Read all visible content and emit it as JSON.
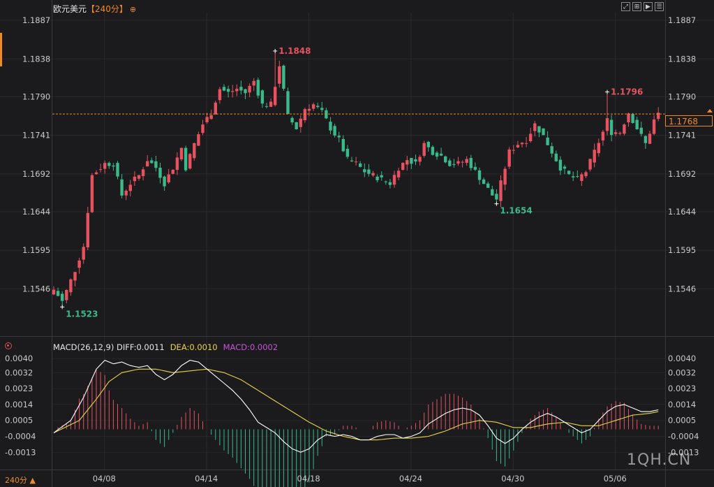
{
  "header": {
    "symbol": "欧元美元",
    "period": "【240分】",
    "plus_icon": "⊕",
    "toolbar_icons": [
      "fullscreen-icon",
      "crosshair-icon",
      "play-icon",
      "settings-icon"
    ]
  },
  "footer": {
    "period_label": "240分",
    "period_arrow": "▲"
  },
  "watermark": "1QH.CN",
  "macd": {
    "label": "MACD(26,12,9) DIFF:0.0011",
    "dea_label": "DEA:0.0010",
    "macd_label": "MACD:0.0002"
  },
  "colors": {
    "up": "#e8515f",
    "down": "#3ab98b",
    "diff": "#ffffff",
    "dea": "#e8d34a",
    "current_line": "#f08a24"
  },
  "chart_data": [
    {
      "type": "candlestick",
      "title": "欧元美元【240分】",
      "ylim": [
        1.151,
        1.1895
      ],
      "yticks": [
        "1.1887",
        "1.1838",
        "1.1790",
        "1.1741",
        "1.1692",
        "1.1644",
        "1.1595",
        "1.1546"
      ],
      "xticks": [
        {
          "label": "04/08",
          "index": 7
        },
        {
          "label": "04/14",
          "index": 31
        },
        {
          "label": "04/18",
          "index": 55
        },
        {
          "label": "04/24",
          "index": 79
        },
        {
          "label": "04/30",
          "index": 103
        },
        {
          "label": "05/06",
          "index": 127
        }
      ],
      "current_price": "1.1768",
      "annotations": [
        {
          "text": "1.1523",
          "index": 2,
          "value": 1.1523,
          "kind": "low"
        },
        {
          "text": "1.1848",
          "index": 52,
          "value": 1.1848,
          "kind": "high"
        },
        {
          "text": "1.1654",
          "index": 104,
          "value": 1.1654,
          "kind": "low"
        },
        {
          "text": "1.1796",
          "index": 130,
          "value": 1.1796,
          "kind": "high"
        }
      ],
      "anchors": [
        [
          0,
          1.1545
        ],
        [
          2,
          1.153
        ],
        [
          5,
          1.157
        ],
        [
          7,
          1.16
        ],
        [
          9,
          1.169
        ],
        [
          12,
          1.1705
        ],
        [
          14,
          1.1705
        ],
        [
          16,
          1.1665
        ],
        [
          18,
          1.168
        ],
        [
          20,
          1.169
        ],
        [
          22,
          1.171
        ],
        [
          24,
          1.17
        ],
        [
          26,
          1.168
        ],
        [
          28,
          1.17
        ],
        [
          30,
          1.1725
        ],
        [
          31,
          1.17
        ],
        [
          33,
          1.173
        ],
        [
          35,
          1.1755
        ],
        [
          37,
          1.177
        ],
        [
          39,
          1.18
        ],
        [
          41,
          1.1795
        ],
        [
          43,
          1.18
        ],
        [
          45,
          1.1795
        ],
        [
          47,
          1.181
        ],
        [
          49,
          1.178
        ],
        [
          51,
          1.178
        ],
        [
          53,
          1.183
        ],
        [
          55,
          1.1765
        ],
        [
          57,
          1.175
        ],
        [
          59,
          1.1775
        ],
        [
          61,
          1.178
        ],
        [
          63,
          1.177
        ],
        [
          65,
          1.175
        ],
        [
          67,
          1.1735
        ],
        [
          69,
          1.171
        ],
        [
          71,
          1.1705
        ],
        [
          73,
          1.1695
        ],
        [
          75,
          1.169
        ],
        [
          77,
          1.1685
        ],
        [
          79,
          1.168
        ],
        [
          81,
          1.17
        ],
        [
          83,
          1.171
        ],
        [
          85,
          1.1705
        ],
        [
          87,
          1.173
        ],
        [
          89,
          1.172
        ],
        [
          91,
          1.1715
        ],
        [
          93,
          1.1705
        ],
        [
          95,
          1.1705
        ],
        [
          97,
          1.171
        ],
        [
          99,
          1.1695
        ],
        [
          101,
          1.168
        ],
        [
          103,
          1.1665
        ],
        [
          104,
          1.166
        ],
        [
          105,
          1.168
        ],
        [
          107,
          1.172
        ],
        [
          109,
          1.173
        ],
        [
          111,
          1.1735
        ],
        [
          113,
          1.1755
        ],
        [
          115,
          1.174
        ],
        [
          117,
          1.172
        ],
        [
          119,
          1.17
        ],
        [
          121,
          1.169
        ],
        [
          123,
          1.1685
        ],
        [
          125,
          1.1695
        ],
        [
          127,
          1.172
        ],
        [
          129,
          1.1745
        ],
        [
          130,
          1.176
        ],
        [
          131,
          1.1745
        ],
        [
          133,
          1.1745
        ],
        [
          135,
          1.177
        ],
        [
          136,
          1.176
        ],
        [
          138,
          1.174
        ],
        [
          139,
          1.173
        ],
        [
          141,
          1.176
        ],
        [
          142,
          1.1768
        ]
      ]
    },
    {
      "type": "macd",
      "title": "MACD(26,12,9)",
      "ylim": [
        -0.0018,
        0.0042
      ],
      "yticks": [
        "0.0040",
        "0.0032",
        "0.0023",
        "0.0014",
        "0.0005",
        "-0.0004",
        "-0.0013"
      ],
      "diff_anchors": [
        [
          0,
          -0.0002
        ],
        [
          4,
          0.0005
        ],
        [
          7,
          0.0018
        ],
        [
          10,
          0.0034
        ],
        [
          12,
          0.0039
        ],
        [
          14,
          0.0037
        ],
        [
          16,
          0.0038
        ],
        [
          18,
          0.0036
        ],
        [
          20,
          0.0035
        ],
        [
          22,
          0.0036
        ],
        [
          24,
          0.0031
        ],
        [
          26,
          0.0028
        ],
        [
          28,
          0.0031
        ],
        [
          30,
          0.0036
        ],
        [
          32,
          0.0039
        ],
        [
          34,
          0.0038
        ],
        [
          36,
          0.0034
        ],
        [
          38,
          0.003
        ],
        [
          40,
          0.0026
        ],
        [
          42,
          0.0022
        ],
        [
          44,
          0.0017
        ],
        [
          46,
          0.0011
        ],
        [
          48,
          0.0004
        ],
        [
          50,
          0.0001
        ],
        [
          52,
          -0.0002
        ],
        [
          54,
          -0.0007
        ],
        [
          56,
          -0.0011
        ],
        [
          58,
          -0.0013
        ],
        [
          60,
          -0.0011
        ],
        [
          62,
          -0.0006
        ],
        [
          64,
          -0.0003
        ],
        [
          66,
          -0.0004
        ],
        [
          68,
          -0.0003
        ],
        [
          70,
          -0.0004
        ],
        [
          72,
          -0.0006
        ],
        [
          74,
          -0.0006
        ],
        [
          76,
          -0.0004
        ],
        [
          78,
          -0.0003
        ],
        [
          80,
          -0.0003
        ],
        [
          82,
          -0.0005
        ],
        [
          84,
          -0.0004
        ],
        [
          86,
          -0.0002
        ],
        [
          88,
          0.0003
        ],
        [
          90,
          0.0006
        ],
        [
          92,
          0.0009
        ],
        [
          94,
          0.0011
        ],
        [
          96,
          0.0012
        ],
        [
          98,
          0.0011
        ],
        [
          100,
          0.0008
        ],
        [
          102,
          0.0002
        ],
        [
          104,
          -0.0005
        ],
        [
          106,
          -0.0008
        ],
        [
          108,
          -0.0005
        ],
        [
          110,
          0.0
        ],
        [
          112,
          0.0004
        ],
        [
          114,
          0.0007
        ],
        [
          116,
          0.0009
        ],
        [
          118,
          0.0007
        ],
        [
          120,
          0.0004
        ],
        [
          122,
          0.0001
        ],
        [
          124,
          -0.0002
        ],
        [
          126,
          0.0
        ],
        [
          128,
          0.0005
        ],
        [
          130,
          0.001
        ],
        [
          132,
          0.0013
        ],
        [
          134,
          0.0014
        ],
        [
          136,
          0.0012
        ],
        [
          138,
          0.001
        ],
        [
          140,
          0.001
        ],
        [
          142,
          0.0011
        ]
      ],
      "dea_anchors": [
        [
          0,
          -0.0002
        ],
        [
          6,
          0.0005
        ],
        [
          10,
          0.0017
        ],
        [
          13,
          0.0027
        ],
        [
          16,
          0.0032
        ],
        [
          20,
          0.0034
        ],
        [
          24,
          0.0034
        ],
        [
          28,
          0.0032
        ],
        [
          32,
          0.0033
        ],
        [
          36,
          0.0034
        ],
        [
          40,
          0.0032
        ],
        [
          44,
          0.0028
        ],
        [
          48,
          0.0022
        ],
        [
          52,
          0.0016
        ],
        [
          56,
          0.001
        ],
        [
          60,
          0.0004
        ],
        [
          64,
          -0.0001
        ],
        [
          68,
          -0.0004
        ],
        [
          72,
          -0.0006
        ],
        [
          76,
          -0.0006
        ],
        [
          80,
          -0.0005
        ],
        [
          84,
          -0.0005
        ],
        [
          88,
          -0.0004
        ],
        [
          92,
          -0.0001
        ],
        [
          96,
          0.0003
        ],
        [
          100,
          0.0005
        ],
        [
          104,
          0.0004
        ],
        [
          108,
          0.0001
        ],
        [
          112,
          0.0001
        ],
        [
          116,
          0.0003
        ],
        [
          120,
          0.0004
        ],
        [
          124,
          0.0002
        ],
        [
          128,
          0.0002
        ],
        [
          132,
          0.0005
        ],
        [
          136,
          0.0008
        ],
        [
          140,
          0.0009
        ],
        [
          142,
          0.001
        ]
      ]
    }
  ]
}
